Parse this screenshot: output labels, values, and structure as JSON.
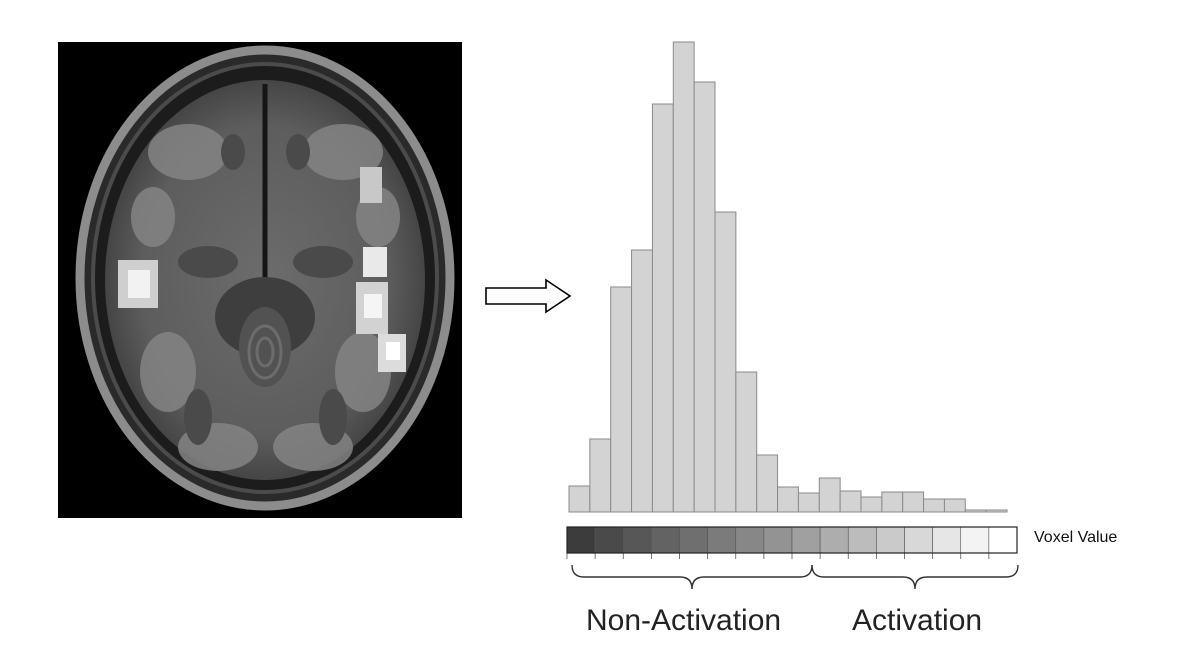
{
  "colorbar": {
    "label": "Voxel Value",
    "shades": [
      "#3c3c3c",
      "#4a4a4a",
      "#575757",
      "#636363",
      "#6f6f6f",
      "#7b7b7b",
      "#878787",
      "#939393",
      "#a0a0a0",
      "#adadad",
      "#bcbcbc",
      "#cacaca",
      "#d8d8d8",
      "#e6e6e6",
      "#f3f3f3",
      "#ffffff"
    ]
  },
  "groups": {
    "non_activation": "Non-Activation",
    "activation": "Activation"
  },
  "chart_data": {
    "type": "bar",
    "bin_count": 21,
    "values": [
      26,
      73,
      225,
      262,
      408,
      470,
      430,
      300,
      140,
      57,
      25,
      19,
      34,
      21,
      15,
      20,
      20,
      13,
      13,
      2,
      2
    ],
    "ylim": [
      0,
      470
    ],
    "bar_color": "#d3d3d3",
    "title": "",
    "xlabel": "",
    "ylabel": ""
  },
  "icons": {
    "arrow": "right-arrow-icon"
  }
}
